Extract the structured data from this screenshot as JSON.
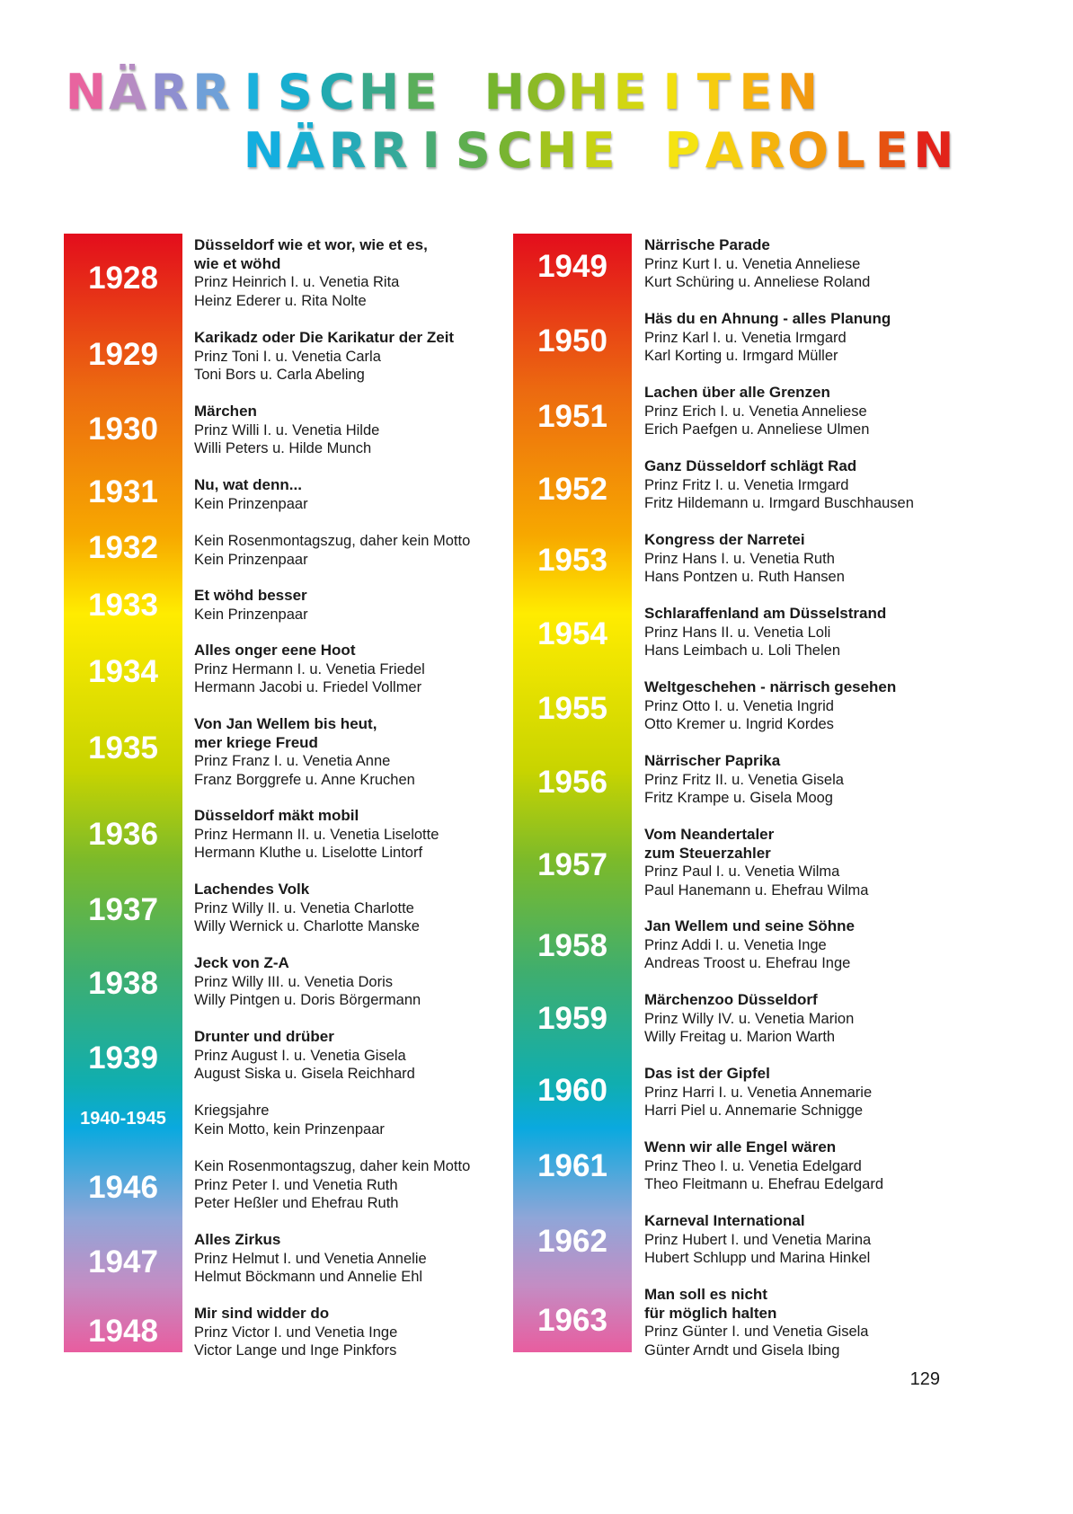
{
  "title": {
    "line1": "NÄRRISCHE HOHEITEN",
    "line2": "NÄRRISCHE PAROLEN",
    "line1_colors": [
      "#e8649f",
      "#b68cc3",
      "#8f8fd0",
      "#6fa0d8",
      "#1bb0dc",
      "#17aed0",
      "#22aab0",
      "#3aa98a",
      "#5aae5a",
      " ",
      "#76b52e",
      "#8cba26",
      "#b0c81c",
      "#d2d611",
      "#f2df10",
      "#f7cc10",
      "#f7b20e",
      "#f29a0e"
    ],
    "line2_colors": [
      "#13aedf",
      "#19afd2",
      "#26aab8",
      "#35a99a",
      "#4aab72",
      "#5eae4f",
      "#78b431",
      "#a2c41d",
      "#c7d312",
      " ",
      "#f5e311",
      "#f6cf10",
      "#f5b40d",
      "#f29a0e",
      "#ec760f",
      "#e65211",
      "#e2231a"
    ]
  },
  "left_column": [
    {
      "year": "1928",
      "motto": [
        "Düsseldorf wie et wor, wie et es,",
        "wie et wöhd"
      ],
      "lines": [
        "Prinz Heinrich I. u. Venetia Rita",
        "Heinz Ederer u. Rita Nolte"
      ]
    },
    {
      "year": "1929",
      "motto": [
        "Karikadz oder Die Karikatur der Zeit"
      ],
      "lines": [
        "Prinz Toni I. u. Venetia Carla",
        "Toni Bors u. Carla Abeling"
      ]
    },
    {
      "year": "1930",
      "motto": [
        "Märchen"
      ],
      "lines": [
        "Prinz Willi I. u. Venetia Hilde",
        "Willi Peters u. Hilde Munch"
      ]
    },
    {
      "year": "1931",
      "motto": [
        "Nu, wat denn..."
      ],
      "lines": [
        "Kein Prinzenpaar"
      ]
    },
    {
      "year": "1932",
      "motto": [],
      "lines": [
        "Kein Rosenmontagszug, daher kein Motto",
        "Kein Prinzenpaar"
      ]
    },
    {
      "year": "1933",
      "motto": [
        "Et wöhd besser"
      ],
      "lines": [
        "Kein Prinzenpaar"
      ]
    },
    {
      "year": "1934",
      "motto": [
        "Alles onger eene Hoot"
      ],
      "lines": [
        "Prinz Hermann I. u. Venetia Friedel",
        "Hermann Jacobi u. Friedel Vollmer"
      ]
    },
    {
      "year": "1935",
      "motto": [
        "Von Jan Wellem bis heut,",
        "mer kriege Freud"
      ],
      "lines": [
        "Prinz Franz I. u. Venetia Anne",
        "Franz Borggrefe u. Anne Kruchen"
      ]
    },
    {
      "year": "1936",
      "motto": [
        "Düsseldorf mäkt mobil"
      ],
      "lines": [
        "Prinz Hermann II. u. Venetia Liselotte",
        "Hermann Kluthe u. Liselotte Lintorf"
      ]
    },
    {
      "year": "1937",
      "motto": [
        "Lachendes Volk"
      ],
      "lines": [
        "Prinz Willy II. u. Venetia Charlotte",
        "Willy Wernick u. Charlotte Manske"
      ]
    },
    {
      "year": "1938",
      "motto": [
        "Jeck von Z-A"
      ],
      "lines": [
        "Prinz Willy III. u. Venetia Doris",
        "Willy Pintgen u. Doris Börgermann"
      ]
    },
    {
      "year": "1939",
      "motto": [
        "Drunter und drüber"
      ],
      "lines": [
        "Prinz August I. u. Venetia Gisela",
        "August Siska u. Gisela Reichhard"
      ]
    },
    {
      "year": "1940-1945",
      "motto": [],
      "lines": [
        "Kriegsjahre",
        "Kein Motto, kein Prinzenpaar"
      ]
    },
    {
      "year": "1946",
      "motto": [],
      "lines": [
        "Kein Rosenmontagszug, daher kein Motto",
        "Prinz Peter I. und Venetia Ruth",
        "Peter Heßler und Ehefrau Ruth"
      ]
    },
    {
      "year": "1947",
      "motto": [
        "Alles Zirkus"
      ],
      "lines": [
        "Prinz Helmut I. und Venetia Annelie",
        "Helmut Böckmann und Annelie Ehl"
      ]
    },
    {
      "year": "1948",
      "motto": [
        "Mir sind widder do"
      ],
      "lines": [
        "Prinz Victor I. und Venetia Inge",
        "Victor Lange und Inge Pinkfors"
      ]
    }
  ],
  "right_column": [
    {
      "year": "1949",
      "motto": [
        "Närrische Parade"
      ],
      "lines": [
        "Prinz Kurt I. u. Venetia Anneliese",
        "Kurt Schüring u. Anneliese Roland"
      ]
    },
    {
      "year": "1950",
      "motto": [
        "Häs du en Ahnung - alles Planung"
      ],
      "lines": [
        "Prinz Karl I. u. Venetia Irmgard",
        "Karl Korting u. Irmgard Müller"
      ]
    },
    {
      "year": "1951",
      "motto": [
        "Lachen über alle Grenzen"
      ],
      "lines": [
        "Prinz Erich I. u. Venetia Anneliese",
        "Erich Paefgen u. Anneliese Ulmen"
      ]
    },
    {
      "year": "1952",
      "motto": [
        "Ganz Düsseldorf schlägt Rad"
      ],
      "lines": [
        "Prinz Fritz I. u. Venetia Irmgard",
        "Fritz Hildemann u. Irmgard Buschhausen"
      ]
    },
    {
      "year": "1953",
      "motto": [
        "Kongress der Narretei"
      ],
      "lines": [
        "Prinz Hans I. u. Venetia Ruth",
        "Hans Pontzen u. Ruth Hansen"
      ]
    },
    {
      "year": "1954",
      "motto": [
        "Schlaraffenland am Düsselstrand"
      ],
      "lines": [
        "Prinz Hans II. u. Venetia Loli",
        "Hans Leimbach u. Loli Thelen"
      ]
    },
    {
      "year": "1955",
      "motto": [
        "Weltgeschehen - närrisch gesehen"
      ],
      "lines": [
        "Prinz Otto I. u. Venetia Ingrid",
        "Otto Kremer u. Ingrid Kordes"
      ]
    },
    {
      "year": "1956",
      "motto": [
        "Närrischer Paprika"
      ],
      "lines": [
        "Prinz Fritz II. u. Venetia Gisela",
        "Fritz Krampe u. Gisela Moog"
      ]
    },
    {
      "year": "1957",
      "motto": [
        "Vom Neandertaler",
        "zum Steuerzahler"
      ],
      "lines": [
        "Prinz Paul I. u. Venetia Wilma",
        "Paul Hanemann u. Ehefrau Wilma"
      ]
    },
    {
      "year": "1958",
      "motto": [
        "Jan Wellem und seine Söhne"
      ],
      "lines": [
        "Prinz Addi I. u. Venetia Inge",
        "Andreas Troost u. Ehefrau Inge"
      ]
    },
    {
      "year": "1959",
      "motto": [
        "Märchenzoo Düsseldorf"
      ],
      "lines": [
        "Prinz Willy IV. u. Venetia Marion",
        "Willy Freitag u. Marion Warth"
      ]
    },
    {
      "year": "1960",
      "motto": [
        "Das ist der Gipfel"
      ],
      "lines": [
        "Prinz Harri I. u. Venetia Annemarie",
        "Harri Piel u. Annemarie Schnigge"
      ]
    },
    {
      "year": "1961",
      "motto": [
        "Wenn wir alle Engel wären"
      ],
      "lines": [
        "Prinz Theo I. u. Venetia Edelgard",
        "Theo Fleitmann u. Ehefrau Edelgard"
      ]
    },
    {
      "year": "1962",
      "motto": [
        "Karneval International"
      ],
      "lines": [
        "Prinz Hubert I. und Venetia Marina",
        "Hubert Schlupp und Marina Hinkel"
      ]
    },
    {
      "year": "1963",
      "motto": [
        "Man soll es nicht",
        "für möglich halten"
      ],
      "lines": [
        "Prinz Günter I. und Venetia Gisela",
        "Günter Arndt und Gisela Ibing"
      ]
    }
  ],
  "page_number": "129"
}
